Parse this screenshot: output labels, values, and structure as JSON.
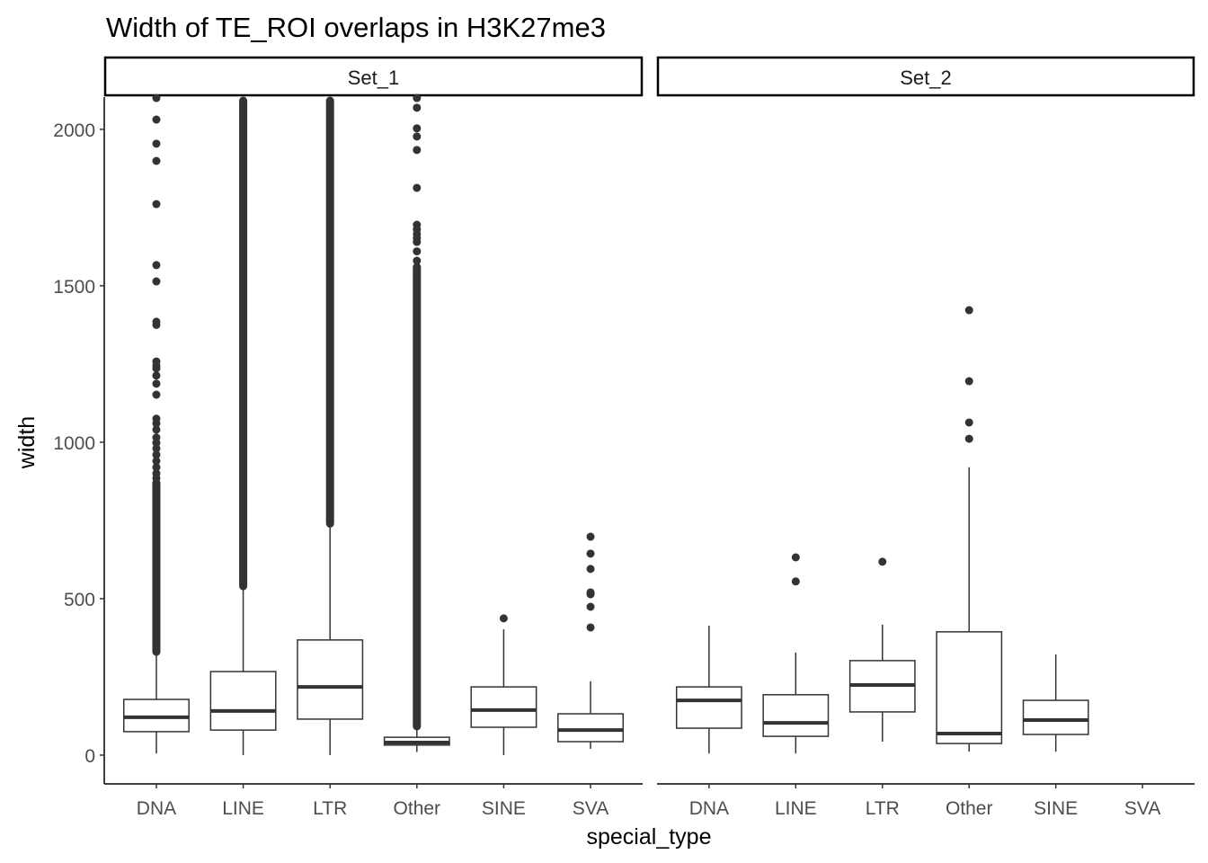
{
  "chart_data": {
    "type": "boxplot",
    "title": "Width of TE_ROI overlaps in H3K27me3",
    "xlabel": "special_type",
    "ylabel": "width",
    "ylim": [
      -92,
      2103
    ],
    "yticks": [
      0,
      500,
      1000,
      1500,
      2000
    ],
    "ytick_labels": [
      "0",
      "500",
      "1000",
      "1500",
      "2000"
    ],
    "categories": [
      "DNA",
      "LINE",
      "LTR",
      "Other",
      "SINE",
      "SVA"
    ],
    "grid": false,
    "colors": {
      "box": "#333333",
      "axis": "#000000",
      "tick_label": "#4d4d4d"
    },
    "panels": [
      {
        "name": "Set_1",
        "boxes": [
          {
            "category": "DNA",
            "lower": 5,
            "q1": 75,
            "median": 121,
            "q3": 178,
            "upper": 322,
            "dense_outlier_ranges": [
              [
                330,
                870
              ]
            ],
            "outliers": [
              885,
              900,
              920,
              940,
              960,
              980,
              998,
              1015,
              1040,
              1060,
              1075,
              1152,
              1187,
              1213,
              1236,
              1245,
              1258,
              1375,
              1385,
              1514,
              1566,
              1761,
              1899,
              1954,
              2031,
              2100
            ]
          },
          {
            "category": "LINE",
            "lower": 0,
            "q1": 80,
            "median": 141,
            "q3": 267,
            "upper": 532,
            "dense_outlier_ranges": [
              [
                540,
                2100
              ]
            ],
            "outliers": []
          },
          {
            "category": "LTR",
            "lower": 0,
            "q1": 115,
            "median": 218,
            "q3": 368,
            "upper": 733,
            "dense_outlier_ranges": [
              [
                740,
                2100
              ]
            ],
            "outliers": []
          },
          {
            "category": "Other",
            "lower": 10,
            "q1": 32,
            "median": 40,
            "q3": 57,
            "upper": 86,
            "dense_outlier_ranges": [
              [
                92,
                1560
              ]
            ],
            "outliers": [
              1580,
              1610,
              1640,
              1652,
              1665,
              1680,
              1695,
              1813,
              1934,
              1977,
              2003,
              2069,
              2100
            ]
          },
          {
            "category": "SINE",
            "lower": 0,
            "q1": 89,
            "median": 144,
            "q3": 218,
            "upper": 402,
            "dense_outlier_ranges": [],
            "outliers": [
              437
            ]
          },
          {
            "category": "SVA",
            "lower": 20,
            "q1": 43,
            "median": 80,
            "q3": 132,
            "upper": 236,
            "dense_outlier_ranges": [],
            "outliers": [
              408,
              474,
              514,
              520,
              595,
              644,
              698
            ]
          }
        ]
      },
      {
        "name": "Set_2",
        "boxes": [
          {
            "category": "DNA",
            "lower": 5,
            "q1": 86,
            "median": 175,
            "q3": 218,
            "upper": 414,
            "dense_outlier_ranges": [],
            "outliers": []
          },
          {
            "category": "LINE",
            "lower": 5,
            "q1": 60,
            "median": 103,
            "q3": 193,
            "upper": 328,
            "dense_outlier_ranges": [],
            "outliers": [
              555,
              632
            ]
          },
          {
            "category": "LTR",
            "lower": 43,
            "q1": 138,
            "median": 224,
            "q3": 302,
            "upper": 417,
            "dense_outlier_ranges": [],
            "outliers": [
              618
            ]
          },
          {
            "category": "Other",
            "lower": 11,
            "q1": 37,
            "median": 69,
            "q3": 394,
            "upper": 920,
            "dense_outlier_ranges": [],
            "outliers": [
              1011,
              1063,
              1195,
              1422
            ]
          },
          {
            "category": "SINE",
            "lower": 11,
            "q1": 66,
            "median": 112,
            "q3": 175,
            "upper": 322,
            "dense_outlier_ranges": [],
            "outliers": []
          }
        ]
      }
    ]
  }
}
